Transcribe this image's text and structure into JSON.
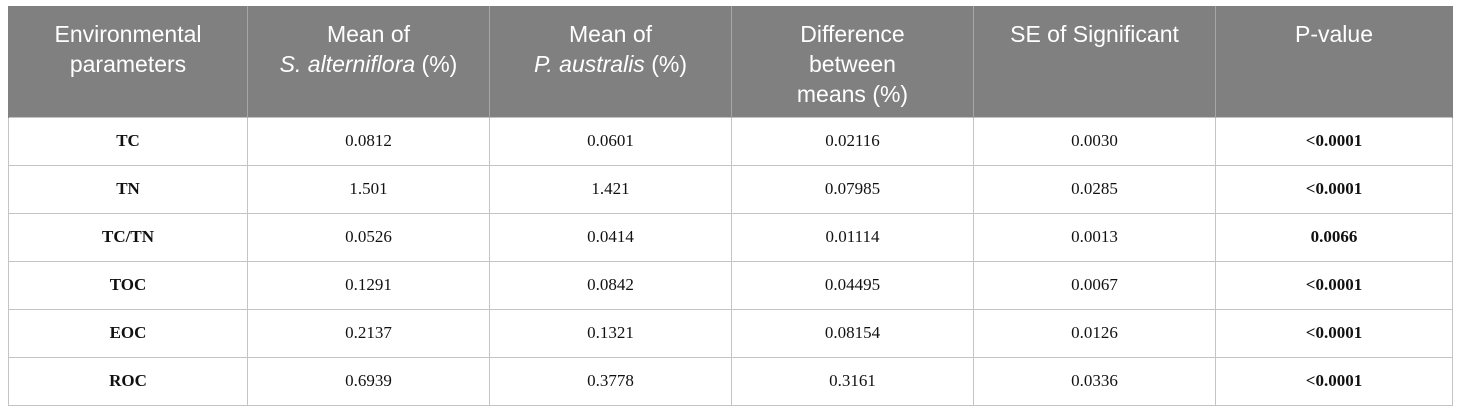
{
  "table": {
    "headers": [
      {
        "line1": "Environmental",
        "line2": "parameters",
        "line3": ""
      },
      {
        "line1": "Mean of",
        "line2_italic": "S. alterniflora",
        "line2_rest": " (%)"
      },
      {
        "line1": "Mean of",
        "line2_italic": "P. australis",
        "line2_rest": " (%)"
      },
      {
        "line1": "Difference",
        "line2": "between",
        "line3": "means (%)"
      },
      {
        "line1": "SE of Significant",
        "line2": "",
        "line3": ""
      },
      {
        "line1": "P-value",
        "line2": "",
        "line3": ""
      }
    ],
    "rows": [
      {
        "param": "TC",
        "mean_sa": "0.0812",
        "mean_pa": "0.0601",
        "diff": "0.02116",
        "se": "0.0030",
        "p": "<0.0001"
      },
      {
        "param": "TN",
        "mean_sa": "1.501",
        "mean_pa": "1.421",
        "diff": "0.07985",
        "se": "0.0285",
        "p": "<0.0001"
      },
      {
        "param": "TC/TN",
        "mean_sa": "0.0526",
        "mean_pa": "0.0414",
        "diff": "0.01114",
        "se": "0.0013",
        "p": "0.0066"
      },
      {
        "param": "TOC",
        "mean_sa": "0.1291",
        "mean_pa": "0.0842",
        "diff": "0.04495",
        "se": "0.0067",
        "p": "<0.0001"
      },
      {
        "param": "EOC",
        "mean_sa": "0.2137",
        "mean_pa": "0.1321",
        "diff": "0.08154",
        "se": "0.0126",
        "p": "<0.0001"
      },
      {
        "param": "ROC",
        "mean_sa": "0.6939",
        "mean_pa": "0.3778",
        "diff": "0.3161",
        "se": "0.0336",
        "p": "<0.0001"
      }
    ]
  },
  "colors": {
    "header_bg": "#808080",
    "header_text": "#ffffff",
    "grid": "#c4c4c4"
  }
}
